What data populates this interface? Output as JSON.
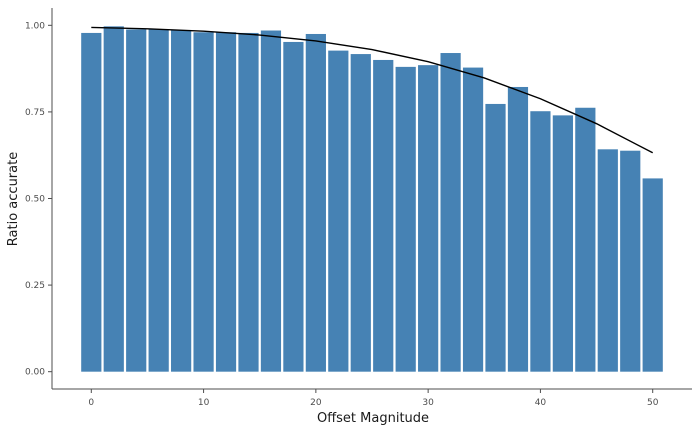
{
  "chart_data": {
    "type": "bar",
    "title": "",
    "xlabel": "Offset Magnitude",
    "ylabel": "Ratio accurate",
    "bar_color": "#4682b4",
    "curve_color": "#000000",
    "axis_color": "#4d4d4d",
    "grid": false,
    "xlim": [
      -3.5,
      53.5
    ],
    "ylim": [
      -0.05,
      1.05
    ],
    "x_ticks": [
      0,
      10,
      20,
      30,
      40,
      50
    ],
    "y_ticks": [
      0.0,
      0.25,
      0.5,
      0.75,
      1.0
    ],
    "x_tick_labels": [
      "0",
      "10",
      "20",
      "30",
      "40",
      "50"
    ],
    "y_tick_labels": [
      "0.00",
      "0.25",
      "0.50",
      "0.75",
      "1.00"
    ],
    "bar_width": 1.8,
    "x": [
      0,
      2,
      4,
      6,
      8,
      10,
      12,
      14,
      16,
      18,
      20,
      22,
      24,
      26,
      28,
      30,
      32,
      34,
      36,
      38,
      40,
      42,
      44,
      46,
      48,
      50
    ],
    "values": [
      0.978,
      0.997,
      0.988,
      0.988,
      0.985,
      0.98,
      0.98,
      0.978,
      0.985,
      0.952,
      0.975,
      0.927,
      0.917,
      0.9,
      0.88,
      0.885,
      0.92,
      0.878,
      0.773,
      0.822,
      0.752,
      0.74,
      0.762,
      0.642,
      0.638,
      0.558
    ],
    "curve": {
      "x": [
        0,
        5,
        10,
        15,
        20,
        25,
        30,
        35,
        40,
        45,
        50
      ],
      "y": [
        0.994,
        0.99,
        0.983,
        0.972,
        0.955,
        0.93,
        0.895,
        0.848,
        0.788,
        0.716,
        0.632
      ]
    }
  }
}
